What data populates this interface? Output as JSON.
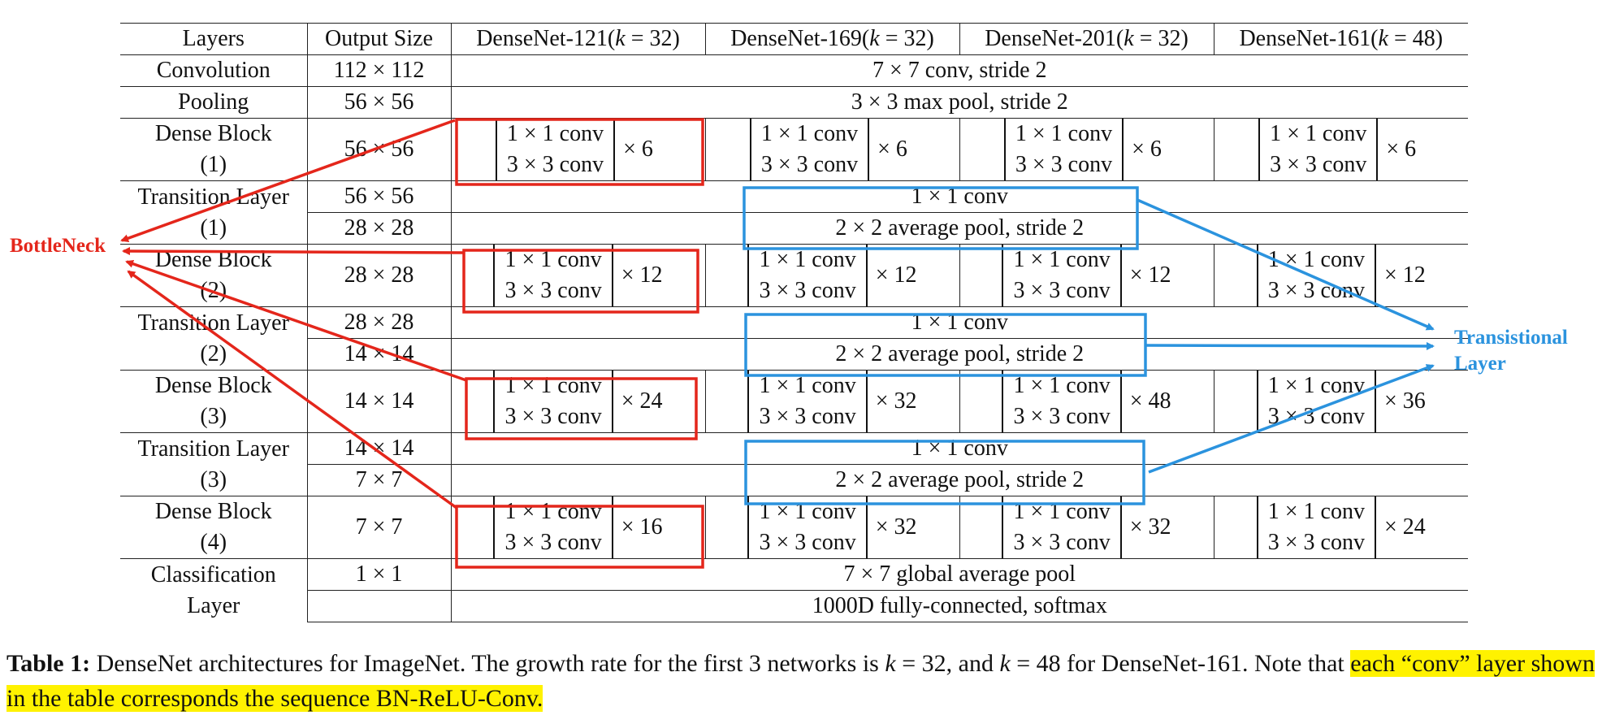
{
  "table": {
    "header": [
      "Layers",
      "Output Size",
      "DenseNet-121(",
      "k",
      " = 32)",
      "DenseNet-169(",
      " = 32)",
      "DenseNet-201(",
      " = 32)",
      "DenseNet-161(",
      " = 48)"
    ],
    "conv_row": {
      "layer": "Convolution",
      "size": "112 × 112",
      "spec": "7 × 7 conv, stride 2"
    },
    "pool_row": {
      "layer": "Pooling",
      "size": "56 × 56",
      "spec": "3 × 3 max pool, stride 2"
    },
    "blocks": [
      {
        "layer_a": "Dense Block",
        "layer_b": "(1)",
        "size": "56 × 56",
        "line1": "1 × 1 conv",
        "line2": "3 × 3 conv",
        "reps": [
          "× 6",
          "× 6",
          "× 6",
          "× 6"
        ]
      },
      {
        "layer_a": "Dense Block",
        "layer_b": "(2)",
        "size": "28 × 28",
        "line1": "1 × 1 conv",
        "line2": "3 × 3 conv",
        "reps": [
          "× 12",
          "× 12",
          "× 12",
          "× 12"
        ]
      },
      {
        "layer_a": "Dense Block",
        "layer_b": "(3)",
        "size": "14 × 14",
        "line1": "1 × 1 conv",
        "line2": "3 × 3 conv",
        "reps": [
          "× 24",
          "× 32",
          "× 48",
          "× 36"
        ]
      },
      {
        "layer_a": "Dense Block",
        "layer_b": "(4)",
        "size": "7 × 7",
        "line1": "1 × 1 conv",
        "line2": "3 × 3 conv",
        "reps": [
          "× 16",
          "× 32",
          "× 32",
          "× 24"
        ]
      }
    ],
    "transitions": [
      {
        "layer_a": "Transition Layer",
        "layer_b": "(1)",
        "size_a": "56 × 56",
        "size_b": "28 × 28",
        "spec_a": "1 × 1 conv",
        "spec_b": "2 × 2 average pool, stride 2"
      },
      {
        "layer_a": "Transition Layer",
        "layer_b": "(2)",
        "size_a": "28 × 28",
        "size_b": "14 × 14",
        "spec_a": "1 × 1 conv",
        "spec_b": "2 × 2 average pool, stride 2"
      },
      {
        "layer_a": "Transition Layer",
        "layer_b": "(3)",
        "size_a": "14 × 14",
        "size_b": "7 × 7",
        "spec_a": "1 × 1 conv",
        "spec_b": "2 × 2 average pool, stride 2"
      }
    ],
    "classification": {
      "layer_a": "Classification",
      "layer_b": "Layer",
      "size": "1 × 1",
      "spec_a": "7 × 7 global average pool",
      "spec_b": "1000D fully-connected, softmax"
    }
  },
  "annotations": {
    "bottleneck": "BottleNeck",
    "transitional_a": "Transistional",
    "transitional_b": "Layer",
    "bottleneck_color": "#e4261b",
    "transitional_color": "#2b93de"
  },
  "caption": {
    "lead": "Table 1:",
    "text": " DenseNet architectures for ImageNet. The growth rate for the first 3 networks is ",
    "k1": "k",
    "eq1": " = 32, and ",
    "k2": "k",
    "eq2": " = 48 for DenseNet-161. Note that ",
    "highlight": "each “conv” layer shown in the table corresponds the sequence BN-ReLU-Conv.",
    "highlight_color": "#fff200"
  }
}
